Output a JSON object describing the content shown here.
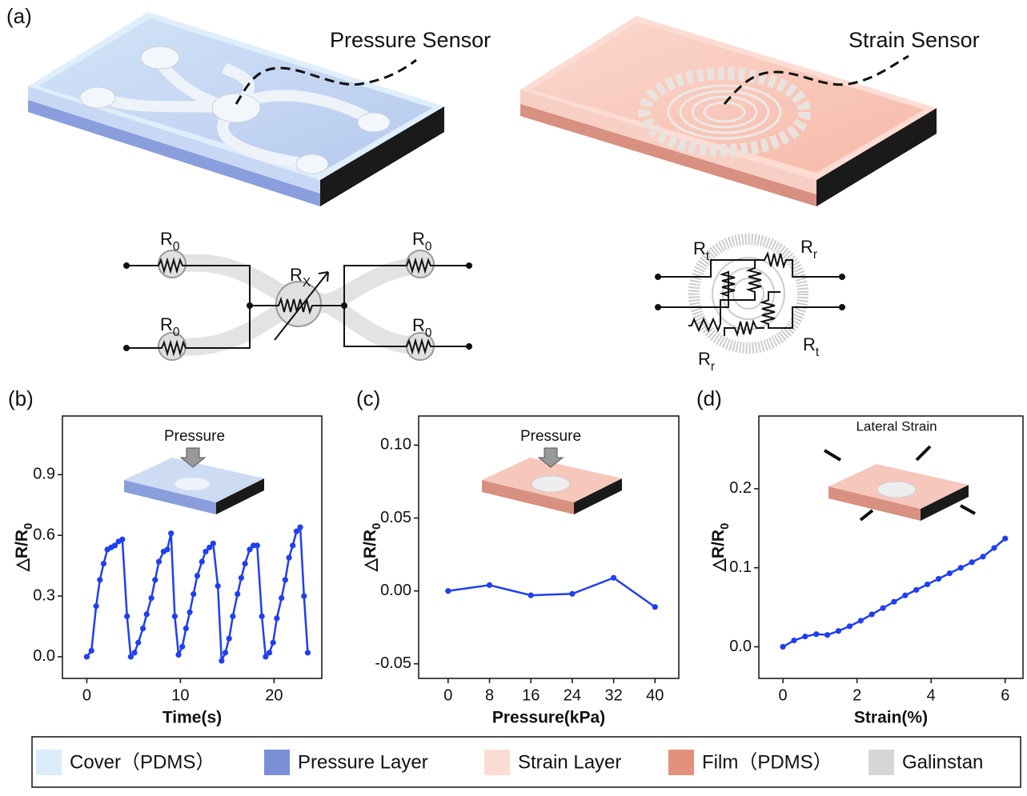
{
  "figure": {
    "panel_label": "(a)",
    "pressure_sensor_label": "Pressure Sensor",
    "strain_sensor_label": "Strain Sensor",
    "pressure_circuit_labels": [
      {
        "main": "R",
        "sub": "0"
      },
      {
        "main": "R",
        "sub": "0"
      },
      {
        "main": "R",
        "sub": "X"
      },
      {
        "main": "R",
        "sub": "0"
      },
      {
        "main": "R",
        "sub": "0"
      }
    ],
    "strain_circuit_labels": [
      {
        "main": "R",
        "sub": "t"
      },
      {
        "main": "R",
        "sub": "r"
      },
      {
        "main": "R",
        "sub": "r"
      },
      {
        "main": "R",
        "sub": "t"
      }
    ],
    "legend": [
      {
        "label": "Cover（PDMS）",
        "color": "#dcebfa"
      },
      {
        "label": "Pressure Layer",
        "color": "#7b8fd8"
      },
      {
        "label": "Strain Layer",
        "color": "#fbdcd3"
      },
      {
        "label": "Film（PDMS）",
        "color": "#e3907e"
      },
      {
        "label": "Galinstan",
        "color": "#d6d6d6"
      }
    ]
  },
  "chart_data": [
    {
      "type": "line",
      "panel_label": "(b)",
      "annotation": "Pressure",
      "xlabel": "Time(s)",
      "ylabel": {
        "main": "△R/R",
        "sub": "0"
      },
      "x": [
        0,
        0.5,
        1,
        1.4,
        1.8,
        2.2,
        2.6,
        3.0,
        3.4,
        3.8,
        4.3,
        4.7,
        5.1,
        5.5,
        6.0,
        6.4,
        6.9,
        7.3,
        7.7,
        8.2,
        8.6,
        9.0,
        9.4,
        9.8,
        10.2,
        10.6,
        11.0,
        11.4,
        11.8,
        12.3,
        12.7,
        13.1,
        13.5,
        14.0,
        14.4,
        14.8,
        15.2,
        15.6,
        16.1,
        16.5,
        16.9,
        17.4,
        17.8,
        18.2,
        18.7,
        19.1,
        19.5,
        19.9,
        20.3,
        20.8,
        21.2,
        21.6,
        22.0,
        22.4,
        22.8,
        23.2,
        23.6
      ],
      "values": [
        0,
        0.03,
        0.25,
        0.38,
        0.46,
        0.53,
        0.54,
        0.55,
        0.57,
        0.58,
        0.2,
        0.0,
        0.02,
        0.07,
        0.14,
        0.21,
        0.29,
        0.38,
        0.47,
        0.52,
        0.53,
        0.61,
        0.2,
        0.01,
        0.05,
        0.14,
        0.22,
        0.31,
        0.4,
        0.47,
        0.52,
        0.54,
        0.56,
        0.35,
        -0.02,
        0.02,
        0.09,
        0.2,
        0.31,
        0.39,
        0.46,
        0.53,
        0.55,
        0.55,
        0.2,
        0.0,
        0.02,
        0.07,
        0.19,
        0.29,
        0.38,
        0.49,
        0.55,
        0.62,
        0.64,
        0.3,
        0.02
      ],
      "color": "#1f3ff0",
      "xlim": [
        -2.6,
        25.1
      ],
      "ylim": [
        -0.107,
        1.19
      ],
      "xticks": [
        0,
        10,
        20
      ],
      "yticks": [
        {
          "value": 0,
          "label": "0.0"
        },
        0.3,
        0.6,
        0.9
      ],
      "grid": false
    },
    {
      "type": "line",
      "panel_label": "(c)",
      "annotation": "Pressure",
      "xlabel": "Pressure(kPa)",
      "ylabel": {
        "main": "△R/R",
        "sub": "0"
      },
      "x": [
        0,
        8,
        16,
        24,
        32,
        40
      ],
      "values": [
        0.0,
        0.004,
        -0.003,
        -0.002,
        0.009,
        -0.011
      ],
      "color": "#1f3ff0",
      "xlim": [
        -5.7,
        44.6
      ],
      "ylim": [
        -0.06,
        0.12
      ],
      "xticks": [
        0,
        8,
        16,
        24,
        32,
        40
      ],
      "yticks": [
        -0.05,
        {
          "value": 0,
          "label": "0.00"
        },
        0.05,
        {
          "value": 0.1,
          "label": "0.10"
        }
      ],
      "grid": false
    },
    {
      "type": "line",
      "panel_label": "(d)",
      "annotation": "Lateral Strain",
      "xlabel": "Strain(%)",
      "ylabel": {
        "main": "△R/R",
        "sub": "0"
      },
      "x": [
        0,
        0.3,
        0.6,
        0.9,
        1.2,
        1.5,
        1.8,
        2.1,
        2.4,
        2.7,
        3.0,
        3.3,
        3.6,
        3.9,
        4.2,
        4.5,
        4.8,
        5.1,
        5.4,
        5.7,
        6.0
      ],
      "values": [
        0,
        0.008,
        0.013,
        0.016,
        0.015,
        0.02,
        0.026,
        0.033,
        0.041,
        0.049,
        0.057,
        0.065,
        0.072,
        0.079,
        0.086,
        0.093,
        0.1,
        0.107,
        0.114,
        0.125,
        0.137
      ],
      "color": "#1f3ff0",
      "xlim": [
        -0.65,
        6.48
      ],
      "ylim": [
        -0.04,
        0.292
      ],
      "xticks": [
        0,
        2,
        4,
        6
      ],
      "yticks": [
        {
          "value": 0,
          "label": "0.0"
        },
        0.1,
        0.2
      ],
      "grid": false
    }
  ]
}
